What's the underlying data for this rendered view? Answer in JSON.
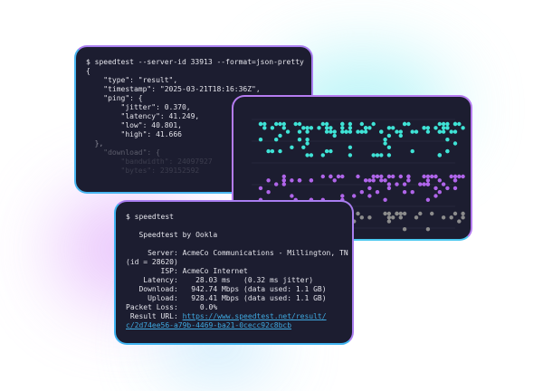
{
  "colors": {
    "cyan": "#3fe3d6",
    "purple": "#b065ea",
    "gray": "#8c8c8c",
    "bg": "#1c1d30",
    "link": "#3fa9e0"
  },
  "json_terminal": {
    "lines": [
      "$ speedtest --server-id 33913 --format=json-pretty",
      "{",
      "    \"type\": \"result\",",
      "    \"timestamp\": \"2025-03-21T18:16:36Z\",",
      "    \"ping\": {",
      "        \"jitter\": 0.370,",
      "        \"latency\": 41.249,",
      "        \"low\": 40.801,",
      "        \"high\": 41.666",
      "  },",
      "    \"download\": {",
      "        \"bandwidth\": 24097927",
      "        \"bytes\": 239152592"
    ]
  },
  "cli_terminal": {
    "command": "$ speedtest",
    "title": "   Speedtest by Ookla",
    "lines": [
      "     Server: AcmeCo Communications - Millington, TN",
      "(id = 28620)",
      "        ISP: AcmeCo Internet",
      "    Latency:    28.03 ms   (0.32 ms jitter)",
      "   Download:   942.74 Mbps (data used: 1.1 GB)",
      "     Upload:   928.41 Mbps (data used: 1.1 GB)",
      "Packet Loss:     0.0%"
    ],
    "url_label": " Result URL: ",
    "url_line1": "https://www.speedtest.net/result/",
    "url_line2": "c/2d74ee56-a79b-4469-ba21-0cecc92c8bcb"
  }
}
